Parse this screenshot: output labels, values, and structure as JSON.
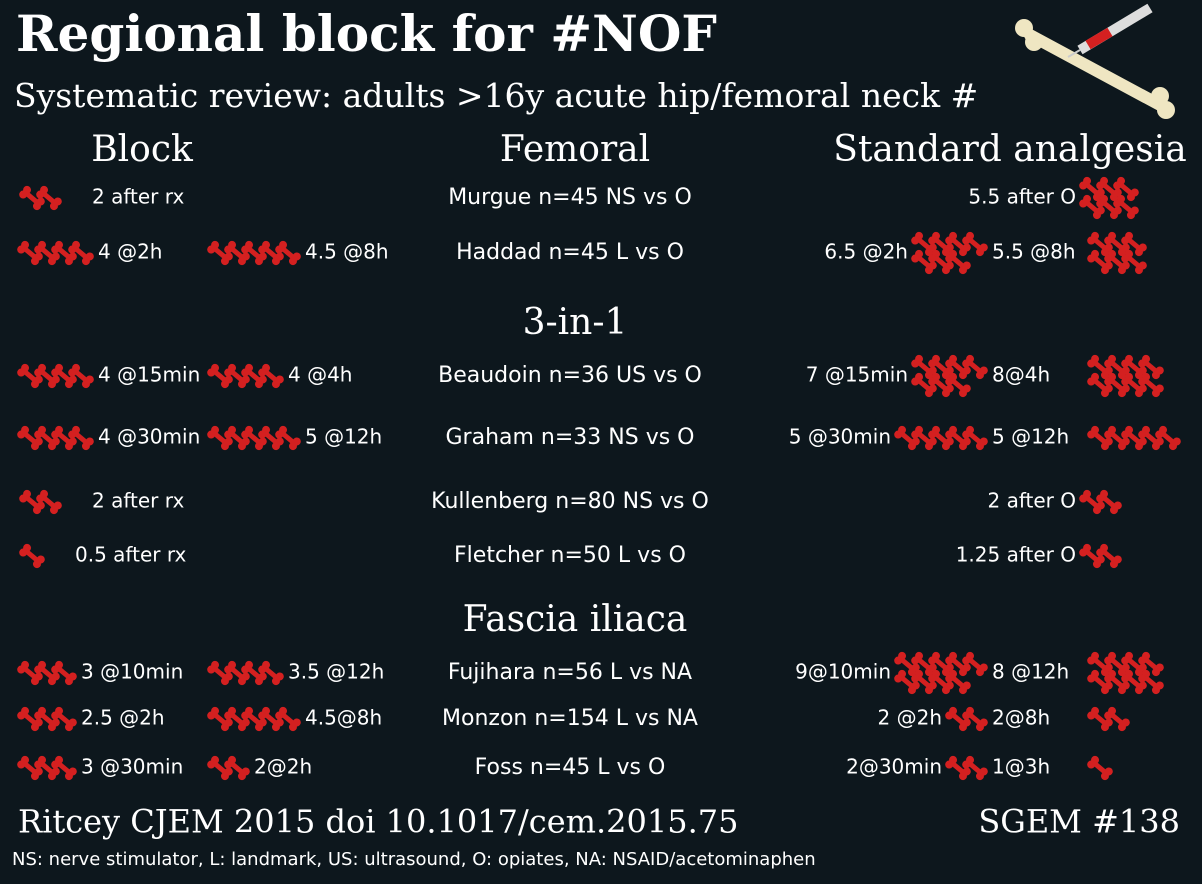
{
  "header": {
    "title": "Regional block for #NOF",
    "subtitle": "Systematic review: adults >16y acute hip/femoral neck #"
  },
  "columns": [
    "Block",
    "Standard analgesia"
  ],
  "sections": [
    {
      "title": "Femoral",
      "rows": [
        {
          "study": "Murgue n=45 NS vs O",
          "block": [
            "2 after rx"
          ],
          "standard": [
            "5.5 after O"
          ]
        },
        {
          "study": "Haddad n=45 L vs O",
          "block": [
            "4 @2h",
            "4.5 @8h"
          ],
          "standard": [
            "6.5 @2h",
            "5.5 @8h"
          ]
        }
      ]
    },
    {
      "title": "3-in-1",
      "rows": [
        {
          "study": "Beaudoin n=36 US vs O",
          "block": [
            "4 @15min",
            "4 @4h"
          ],
          "standard": [
            "7 @15min",
            "8@4h"
          ]
        },
        {
          "study": "Graham n=33 NS vs O",
          "block": [
            "4 @30min",
            "5 @12h"
          ],
          "standard": [
            "5 @30min",
            "5 @12h"
          ]
        },
        {
          "study": "Kullenberg n=80 NS vs O",
          "block": [
            "2 after rx"
          ],
          "standard": [
            "2 after O"
          ]
        },
        {
          "study": "Fletcher n=50 L vs O",
          "block": [
            "0.5 after rx"
          ],
          "standard": [
            "1.25 after O"
          ]
        }
      ]
    },
    {
      "title": "Fascia iliaca",
      "rows": [
        {
          "study": "Fujihara n=56 L vs NA",
          "block": [
            "3 @10min",
            "3.5 @12h"
          ],
          "standard": [
            "9@10min",
            "8 @12h"
          ]
        },
        {
          "study": "Monzon n=154 L vs NA",
          "block": [
            "2.5 @2h",
            "4.5@8h"
          ],
          "standard": [
            "2 @2h",
            "2@8h"
          ]
        },
        {
          "study": "Foss n=45 L vs O",
          "block": [
            "3 @30min",
            "2@2h"
          ],
          "standard": [
            "2@30min",
            "1@3h"
          ]
        }
      ]
    }
  ],
  "footer": {
    "citation": "Ritcey CJEM 2015 doi 10.1017/cem.2015.75",
    "tag": "SGEM #138",
    "abbreviations": "NS: nerve stimulator, L: landmark, US: ultrasound, O: opiates, NA: NSAID/acetominaphen"
  }
}
